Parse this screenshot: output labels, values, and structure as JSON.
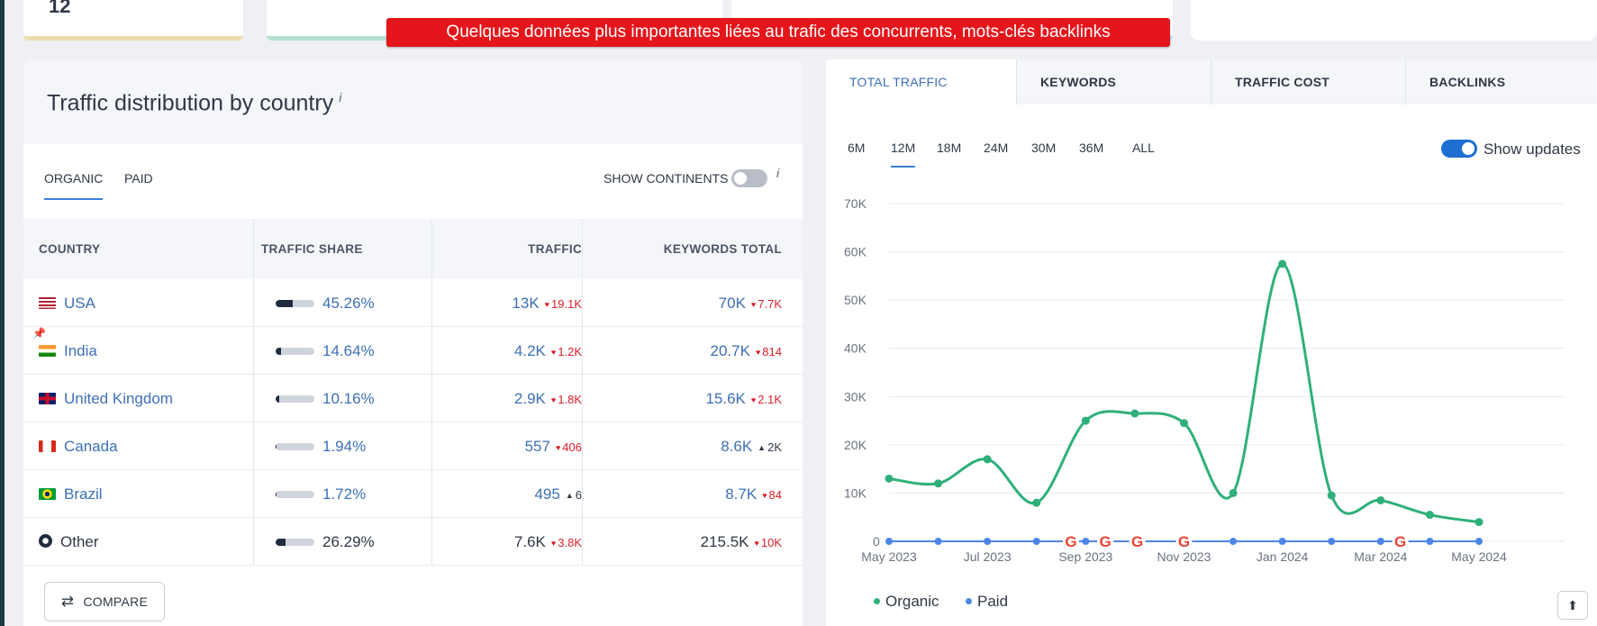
{
  "banner": "Quelques données plus importantes liées au trafic des concurrents, mots-clés backlinks",
  "top_cards": {
    "first_value": "12"
  },
  "country_panel": {
    "title": "Traffic distribution by country",
    "info": "i",
    "tabs": [
      "ORGANIC",
      "PAID"
    ],
    "show_continents": "SHOW CONTINENTS",
    "columns": [
      "COUNTRY",
      "TRAFFIC SHARE",
      "TRAFFIC",
      "KEYWORDS TOTAL"
    ],
    "rows": [
      {
        "country": "USA",
        "flag": "us-flag-icon",
        "share": "45.26%",
        "share_value": 0.4526,
        "traffic": "13K",
        "traffic_delta": "19.1K",
        "traffic_dir": "down",
        "keywords": "70K",
        "keywords_delta": "7.7K",
        "keywords_dir": "down",
        "link": true
      },
      {
        "country": "India",
        "flag": "india-flag-icon",
        "share": "14.64%",
        "share_value": 0.1464,
        "traffic": "4.2K",
        "traffic_delta": "1.2K",
        "traffic_dir": "down",
        "keywords": "20.7K",
        "keywords_delta": "814",
        "keywords_dir": "down",
        "link": true,
        "pinned": true
      },
      {
        "country": "United Kingdom",
        "flag": "uk-flag-icon",
        "share": "10.16%",
        "share_value": 0.1016,
        "traffic": "2.9K",
        "traffic_delta": "1.8K",
        "traffic_dir": "down",
        "keywords": "15.6K",
        "keywords_delta": "2.1K",
        "keywords_dir": "down",
        "link": true
      },
      {
        "country": "Canada",
        "flag": "canada-flag-icon",
        "share": "1.94%",
        "share_value": 0.0194,
        "traffic": "557",
        "traffic_delta": "406",
        "traffic_dir": "down",
        "keywords": "8.6K",
        "keywords_delta": "2K",
        "keywords_dir": "up",
        "link": true
      },
      {
        "country": "Brazil",
        "flag": "brazil-flag-icon",
        "share": "1.72%",
        "share_value": 0.0172,
        "traffic": "495",
        "traffic_delta": "6",
        "traffic_dir": "up",
        "keywords": "8.7K",
        "keywords_delta": "84",
        "keywords_dir": "down",
        "link": true
      },
      {
        "country": "Other",
        "flag": "globe-icon",
        "share": "26.29%",
        "share_value": 0.2629,
        "traffic": "7.6K",
        "traffic_delta": "3.8K",
        "traffic_dir": "down",
        "keywords": "215.5K",
        "keywords_delta": "10K",
        "keywords_dir": "down",
        "link": false
      }
    ],
    "compare_label": "COMPARE"
  },
  "traffic_panel": {
    "tabs": [
      "TOTAL TRAFFIC",
      "KEYWORDS",
      "TRAFFIC COST",
      "BACKLINKS"
    ],
    "active_tab": 0,
    "periods": [
      "6M",
      "12M",
      "18M",
      "24M",
      "30M",
      "36M",
      "ALL"
    ],
    "active_period": 1,
    "show_updates": "Show updates",
    "colors": {
      "organic": "#2fb07a",
      "paid": "#4d86e6"
    }
  },
  "chart_data": {
    "type": "line",
    "x": [
      "May 2023",
      "Jun 2023",
      "Jul 2023",
      "Aug 2023",
      "Sep 2023",
      "Oct 2023",
      "Nov 2023",
      "Dec 2023",
      "Jan 2024",
      "Feb 2024",
      "Mar 2024",
      "Apr 2024",
      "May 2024"
    ],
    "x_tick_labels": [
      "May 2023",
      "Jul 2023",
      "Sep 2023",
      "Nov 2023",
      "Jan 2024",
      "Mar 2024",
      "May 2024"
    ],
    "y_ticks": [
      "0",
      "10K",
      "20K",
      "30K",
      "40K",
      "50K",
      "60K",
      "70K"
    ],
    "ylim": [
      0,
      70000
    ],
    "grid": true,
    "legend_position": "bottom-left",
    "series": [
      {
        "name": "Organic",
        "values": [
          13000,
          12000,
          17000,
          8000,
          25000,
          26500,
          24500,
          10000,
          57500,
          9500,
          8500,
          5500,
          4000
        ]
      },
      {
        "name": "Paid",
        "values": [
          0,
          0,
          0,
          0,
          0,
          0,
          0,
          0,
          0,
          0,
          0,
          0,
          0
        ]
      }
    ],
    "google_update_markers": [
      "Aug 2023",
      "Sep 2023",
      "Oct 2023",
      "Nov 2023",
      "Mar 2024"
    ]
  }
}
